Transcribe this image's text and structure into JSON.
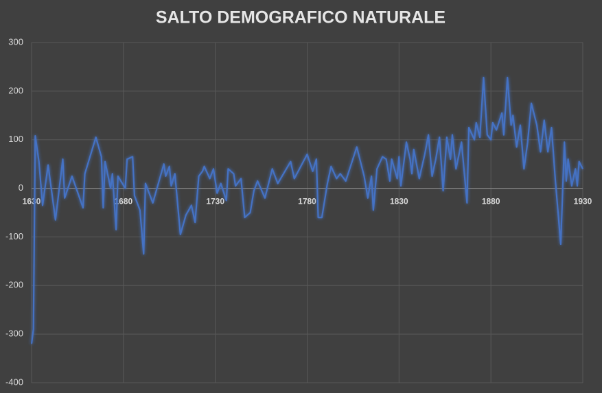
{
  "chart_data": {
    "type": "line",
    "title": "SALTO DEMOGRAFICO NATURALE",
    "x": [
      1630,
      1631,
      1632,
      1634,
      1636,
      1639,
      1643,
      1647,
      1648,
      1652,
      1658,
      1659,
      1665,
      1668,
      1669,
      1670,
      1673,
      1674,
      1676,
      1677,
      1681,
      1682,
      1685,
      1686,
      1689,
      1691,
      1692,
      1696,
      1699,
      1702,
      1703,
      1705,
      1706,
      1708,
      1711,
      1714,
      1717,
      1719,
      1721,
      1723,
      1724,
      1727,
      1729,
      1731,
      1733,
      1736,
      1737,
      1740,
      1741,
      1744,
      1746,
      1749,
      1751,
      1753,
      1757,
      1761,
      1764,
      1771,
      1773,
      1780,
      1783,
      1785,
      1786,
      1788,
      1791,
      1793,
      1796,
      1798,
      1801,
      1807,
      1809,
      1811,
      1813,
      1815,
      1816,
      1818,
      1821,
      1823,
      1825,
      1826,
      1829,
      1830,
      1831,
      1834,
      1836,
      1837,
      1838,
      1840,
      1841,
      1844,
      1846,
      1848,
      1850,
      1852,
      1854,
      1856,
      1858,
      1859,
      1861,
      1864,
      1867,
      1868,
      1871,
      1872,
      1874,
      1876,
      1878,
      1880,
      1881,
      1883,
      1886,
      1887,
      1889,
      1891,
      1892,
      1894,
      1896,
      1898,
      1900,
      1902,
      1905,
      1907,
      1909,
      1911,
      1913,
      1915,
      1918,
      1920,
      1921,
      1922,
      1924,
      1926,
      1927,
      1928,
      1930
    ],
    "values": [
      -320,
      -290,
      108,
      55,
      -35,
      48,
      -65,
      60,
      -20,
      25,
      -40,
      30,
      105,
      65,
      -40,
      55,
      0,
      30,
      -85,
      25,
      0,
      60,
      65,
      -15,
      -45,
      -135,
      10,
      -30,
      10,
      50,
      25,
      45,
      5,
      30,
      -95,
      -55,
      -35,
      -70,
      25,
      35,
      45,
      20,
      40,
      -10,
      10,
      -25,
      40,
      30,
      5,
      20,
      -60,
      -50,
      -5,
      15,
      -20,
      40,
      10,
      55,
      20,
      70,
      35,
      60,
      -60,
      -60,
      10,
      45,
      20,
      30,
      15,
      85,
      55,
      25,
      -20,
      25,
      -45,
      40,
      65,
      60,
      15,
      60,
      20,
      65,
      5,
      95,
      60,
      30,
      80,
      40,
      20,
      70,
      110,
      25,
      60,
      105,
      -5,
      105,
      60,
      110,
      40,
      95,
      -30,
      125,
      100,
      135,
      105,
      228,
      110,
      100,
      135,
      120,
      155,
      110,
      228,
      130,
      150,
      85,
      130,
      40,
      95,
      175,
      130,
      75,
      140,
      75,
      125,
      20,
      -115,
      95,
      15,
      60,
      5,
      40,
      5,
      55,
      40
    ],
    "color": "#4472c4",
    "xlim": [
      1630,
      1930
    ],
    "xticks": [
      1630,
      1680,
      1730,
      1780,
      1830,
      1880,
      1930
    ],
    "ylim": [
      -400,
      300
    ],
    "yticks": [
      -400,
      -300,
      -200,
      -100,
      0,
      100,
      200,
      300
    ],
    "grid": true
  }
}
